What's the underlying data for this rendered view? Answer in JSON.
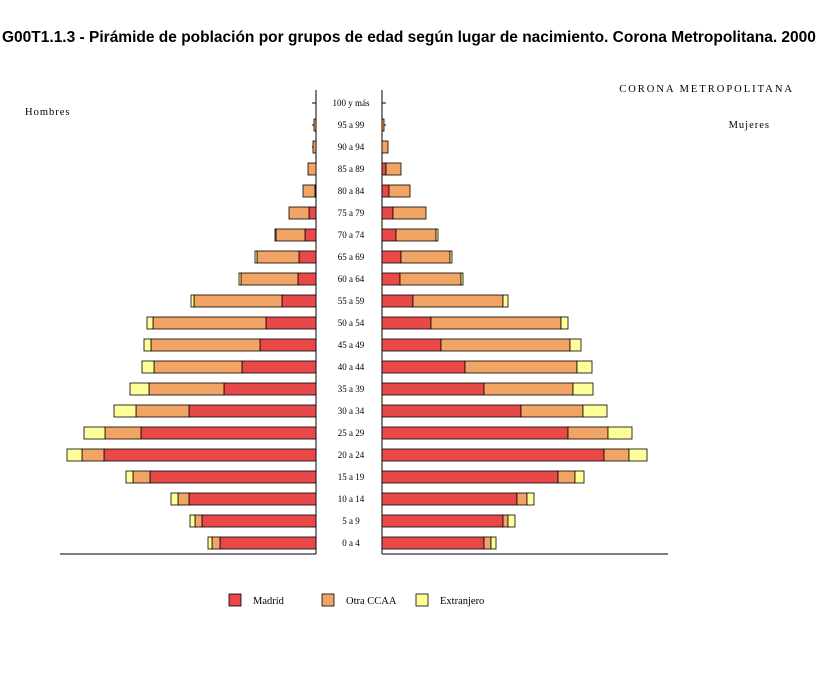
{
  "chart_data": {
    "type": "bar",
    "title": "G00T1.1.3 - Pirámide de población por grupos de edad según lugar de nacimiento. Corona Metropolitana. 2000",
    "region": "CORONA METROPOLITANA",
    "left_label": "Hombres",
    "right_label": "Mujeres",
    "categories": [
      "100 y más",
      "95 a 99",
      "90 a 94",
      "85 a 89",
      "80 a 84",
      "75 a 79",
      "70 a 74",
      "65 a 69",
      "60 a 64",
      "55 a 59",
      "50 a 54",
      "45 a 49",
      "40 a 44",
      "35 a 39",
      "30 a 34",
      "25 a 29",
      "20 a 24",
      "15 a 19",
      "10 a 14",
      "5 a 9",
      "0 a 4"
    ],
    "series": [
      {
        "name": "Madrid",
        "color": "#e84848",
        "men": [
          0,
          0,
          0,
          0,
          1,
          7,
          11,
          17,
          18,
          34,
          50,
          56,
          74,
          92,
          127,
          175,
          212,
          166,
          127,
          114,
          96
        ],
        "women": [
          0,
          0,
          0,
          4,
          7,
          11,
          14,
          19,
          18,
          31,
          49,
          59,
          83,
          102,
          139,
          186,
          222,
          176,
          135,
          121,
          102
        ]
      },
      {
        "name": "Otra CCAA",
        "color": "#f2a464",
        "men": [
          0,
          2,
          3,
          8,
          12,
          20,
          29,
          42,
          57,
          88,
          113,
          109,
          88,
          75,
          53,
          36,
          22,
          17,
          11,
          7,
          8
        ],
        "women": [
          0,
          2,
          6,
          15,
          21,
          33,
          40,
          49,
          61,
          90,
          130,
          129,
          112,
          89,
          62,
          40,
          25,
          17,
          10,
          5,
          7
        ]
      },
      {
        "name": "Extranjero",
        "color": "#ffff99",
        "men": [
          0,
          0,
          0,
          0,
          0,
          0,
          1,
          2,
          2,
          3,
          6,
          7,
          12,
          19,
          22,
          21,
          15,
          7,
          7,
          5,
          4
        ],
        "women": [
          0,
          0,
          0,
          0,
          0,
          0,
          2,
          2,
          2,
          5,
          7,
          11,
          15,
          20,
          24,
          24,
          18,
          9,
          7,
          7,
          5
        ]
      }
    ]
  }
}
